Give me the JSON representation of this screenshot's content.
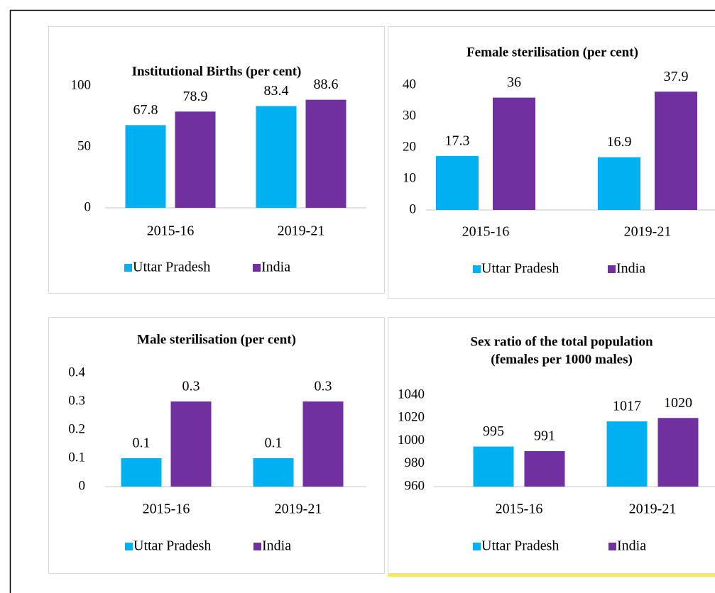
{
  "chart_data": [
    {
      "type": "bar",
      "title": [
        "Institutional Births (per cent)"
      ],
      "categories": [
        "2015-16",
        "2019-21"
      ],
      "series": [
        {
          "name": "Uttar Pradesh",
          "color": "#00b0f0",
          "values": [
            67.8,
            83.4
          ]
        },
        {
          "name": "India",
          "color": "#7030a0",
          "values": [
            78.9,
            88.6
          ]
        }
      ],
      "ylim": [
        0,
        100
      ],
      "yticks": [
        0,
        50,
        100
      ],
      "legend": "bottom"
    },
    {
      "type": "bar",
      "title": [
        "Female sterilisation (per cent)"
      ],
      "categories": [
        "2015-16",
        "2019-21"
      ],
      "series": [
        {
          "name": "Uttar Pradesh",
          "color": "#00b0f0",
          "values": [
            17.3,
            16.9
          ]
        },
        {
          "name": "India",
          "color": "#7030a0",
          "values": [
            36,
            37.9
          ]
        }
      ],
      "ylim": [
        0,
        40
      ],
      "yticks": [
        0,
        10,
        20,
        30,
        40
      ],
      "legend": "bottom"
    },
    {
      "type": "bar",
      "title": [
        "Male sterilisation (per cent)"
      ],
      "categories": [
        "2015-16",
        "2019-21"
      ],
      "series": [
        {
          "name": "Uttar Pradesh",
          "color": "#00b0f0",
          "values": [
            0.1,
            0.1
          ]
        },
        {
          "name": "India",
          "color": "#7030a0",
          "values": [
            0.3,
            0.3
          ]
        }
      ],
      "ylim": [
        0,
        0.4
      ],
      "yticks": [
        0,
        0.1,
        0.2,
        0.3,
        0.4
      ],
      "legend": "bottom"
    },
    {
      "type": "bar",
      "title": [
        "Sex ratio of the total population",
        "(females per 1000 males)"
      ],
      "categories": [
        "2015-16",
        "2019-21"
      ],
      "series": [
        {
          "name": "Uttar Pradesh",
          "color": "#00b0f0",
          "values": [
            995,
            1017
          ]
        },
        {
          "name": "India",
          "color": "#7030a0",
          "values": [
            991,
            1020
          ]
        }
      ],
      "ylim": [
        960,
        1040
      ],
      "yticks": [
        960,
        980,
        1000,
        1020,
        1040
      ],
      "legend": "bottom"
    }
  ]
}
